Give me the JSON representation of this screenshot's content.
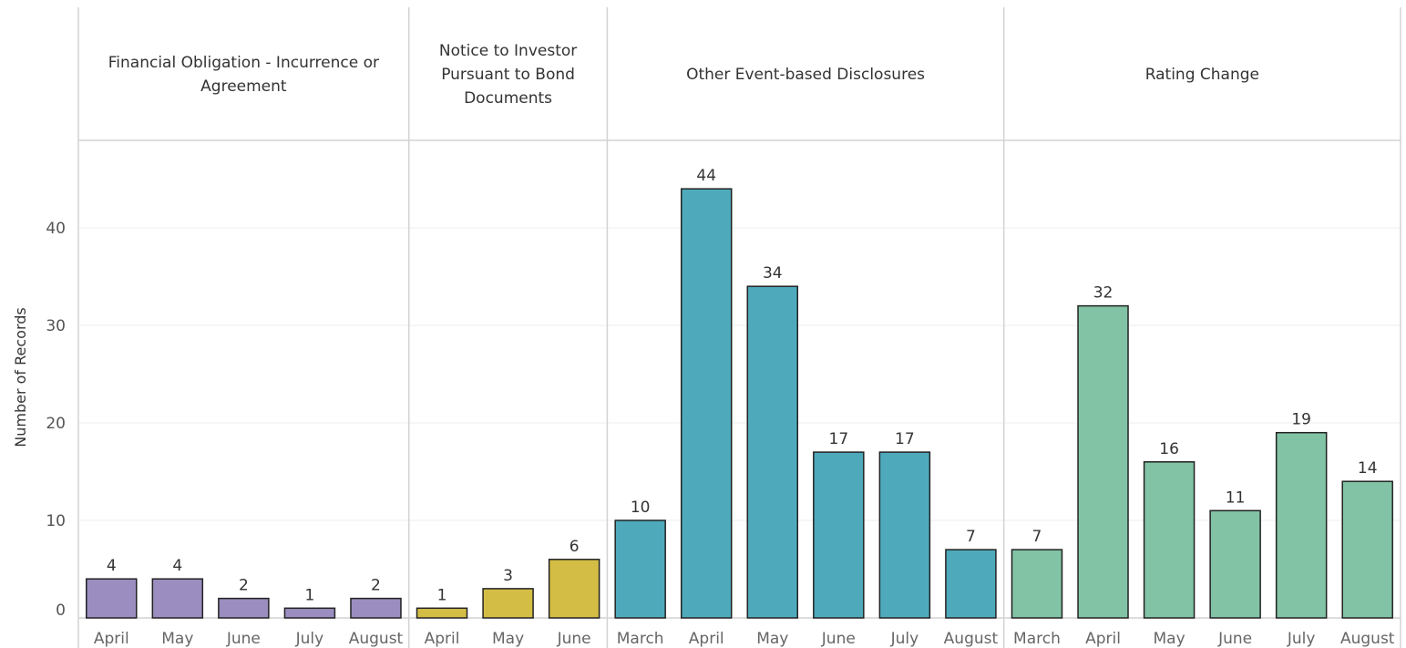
{
  "colors": {
    "panel_1": "#9b8dbf",
    "panel_2": "#d4bd45",
    "panel_3": "#4eaabb",
    "panel_4": "#82c3a5",
    "bar_outline": "#222222",
    "divider": "#d3d3d3",
    "gridline": "#eeeeee"
  },
  "chart_data": {
    "type": "bar",
    "ylabel": "Number of Records",
    "ylim": [
      0,
      49
    ],
    "yticks": [
      0,
      10,
      20,
      30,
      40
    ],
    "grid": true,
    "panels": [
      {
        "title_lines": [
          "Financial Obligation - Incurrence or",
          "Agreement"
        ],
        "color": "#9b8dbf",
        "categories": [
          "April",
          "May",
          "June",
          "July",
          "August"
        ],
        "values": [
          4,
          4,
          2,
          1,
          2
        ]
      },
      {
        "title_lines": [
          "Notice to Investor",
          "Pursuant to Bond",
          "Documents"
        ],
        "color": "#d4bd45",
        "categories": [
          "April",
          "May",
          "June"
        ],
        "values": [
          1,
          3,
          6
        ]
      },
      {
        "title_lines": [
          "Other Event-based Disclosures"
        ],
        "color": "#4eaabb",
        "categories": [
          "March",
          "April",
          "May",
          "June",
          "July",
          "August"
        ],
        "values": [
          10,
          44,
          34,
          17,
          17,
          7
        ]
      },
      {
        "title_lines": [
          "Rating Change"
        ],
        "color": "#82c3a5",
        "categories": [
          "March",
          "April",
          "May",
          "June",
          "July",
          "August"
        ],
        "values": [
          7,
          32,
          16,
          11,
          19,
          14
        ]
      }
    ]
  }
}
